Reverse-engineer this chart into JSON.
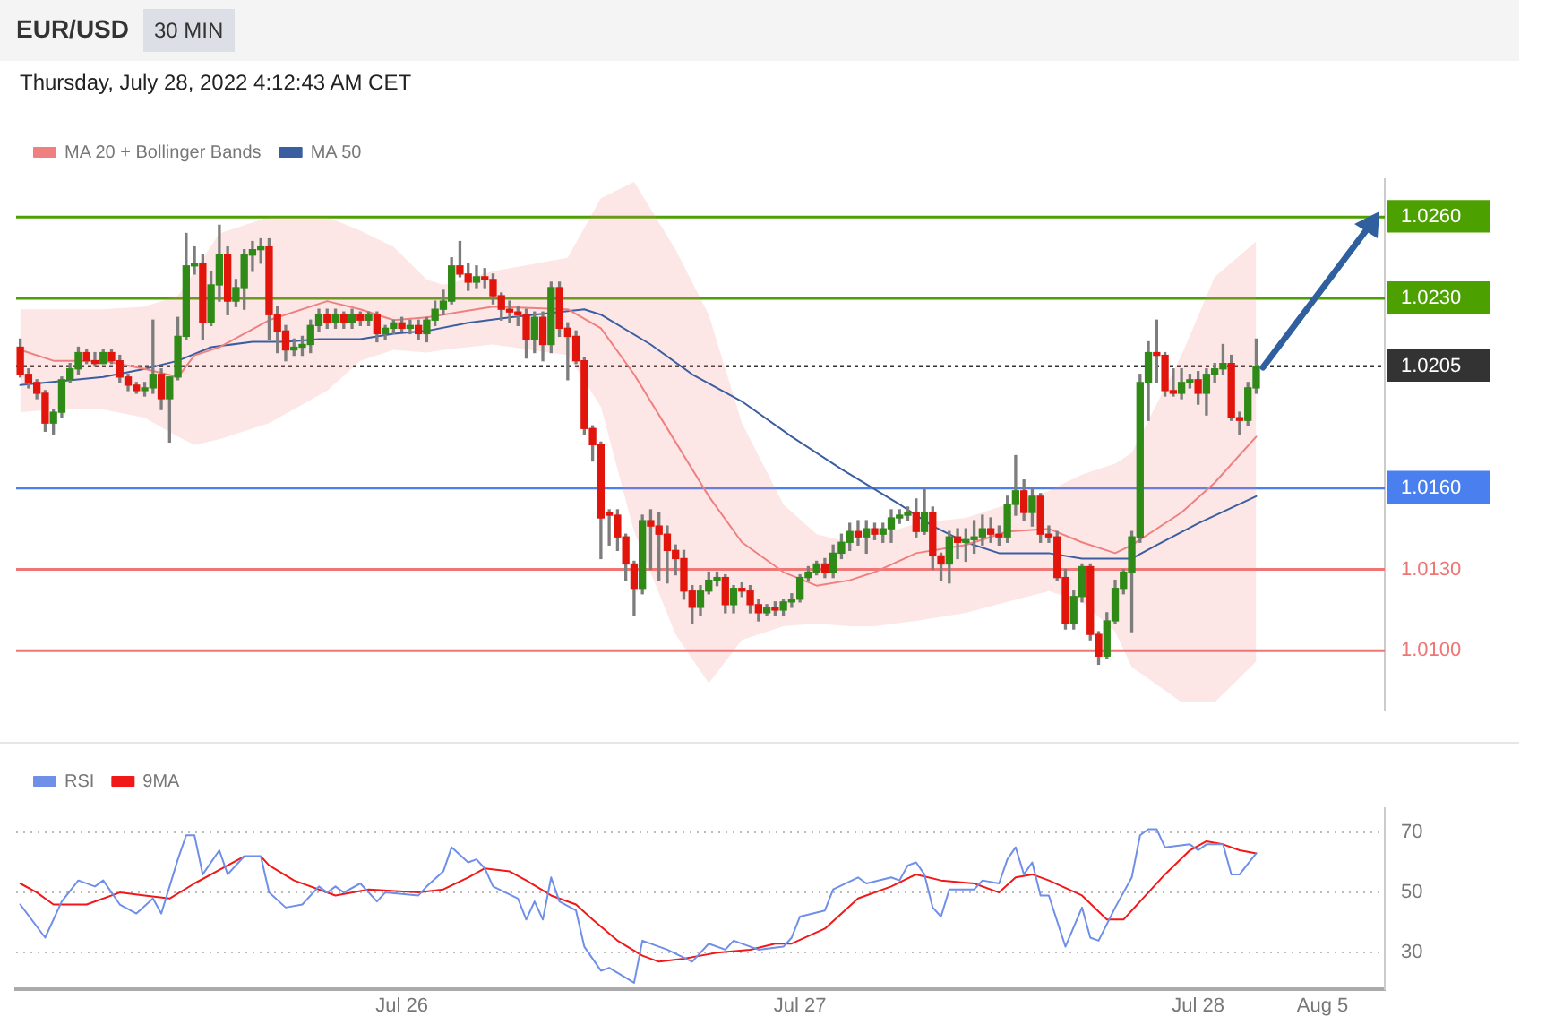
{
  "chart_data": [
    {
      "type": "candlestick",
      "title": "EUR/USD",
      "subtitle": "30 MIN",
      "annotations": [
        "Thursday, July 28, 2022 4:12:43 AM CET"
      ],
      "categories": [
        null,
        null,
        null,
        null,
        null,
        null,
        null,
        null,
        null,
        null,
        null,
        null,
        null,
        null,
        null,
        null,
        null,
        null,
        null,
        null,
        null,
        null,
        null,
        null,
        null,
        null,
        null,
        null,
        null,
        null,
        null,
        null,
        null,
        null,
        null,
        null,
        null,
        null,
        null,
        null,
        null,
        null,
        null,
        null,
        null,
        null,
        null,
        null,
        null,
        null,
        null,
        null,
        null,
        null,
        null,
        null,
        null,
        null,
        null,
        null,
        null,
        null,
        null,
        null,
        null,
        null,
        null,
        null,
        null,
        null,
        null,
        null,
        null,
        null,
        null,
        null,
        null,
        null,
        null,
        null,
        null,
        null,
        null,
        null,
        null,
        null,
        null,
        null,
        null,
        null,
        null,
        null,
        null,
        null,
        null,
        null,
        null,
        null,
        null,
        null,
        null,
        null,
        null,
        null,
        null,
        null,
        null,
        null,
        null,
        null,
        null,
        null,
        null,
        null,
        null,
        null,
        null,
        null,
        null,
        null,
        null,
        null,
        null,
        null,
        null,
        null,
        null,
        null,
        null,
        null,
        null,
        null,
        null,
        null,
        null,
        null,
        null,
        null,
        null,
        null,
        null,
        null,
        null,
        null,
        null,
        null,
        null,
        null,
        null,
        null,
        null,
        null,
        null,
        null,
        null,
        null,
        null,
        null,
        null,
        null,
        null,
        null,
        null,
        null,
        null
      ],
      "ohlc": [
        [
          1.0212,
          1.0215,
          1.0201,
          1.0202
        ],
        [
          1.0202,
          1.0204,
          1.0197,
          1.0199
        ],
        [
          1.0199,
          1.02,
          1.0193,
          1.0195
        ],
        [
          1.0195,
          1.0196,
          1.0181,
          1.0184
        ],
        [
          1.0184,
          1.0189,
          1.018,
          1.0188
        ],
        [
          1.0188,
          1.0201,
          1.0186,
          1.02
        ],
        [
          1.02,
          1.0206,
          1.0199,
          1.0204
        ],
        [
          1.0204,
          1.0212,
          1.0202,
          1.021
        ],
        [
          1.021,
          1.0211,
          1.0206,
          1.0207
        ],
        [
          1.0207,
          1.021,
          1.0205,
          1.0206
        ],
        [
          1.0206,
          1.0211,
          1.0206,
          1.021
        ],
        [
          1.021,
          1.0211,
          1.0206,
          1.0207
        ],
        [
          1.0207,
          1.0209,
          1.0199,
          1.0201
        ],
        [
          1.0201,
          1.0202,
          1.0196,
          1.0198
        ],
        [
          1.0198,
          1.0199,
          1.0195,
          1.0196
        ],
        [
          1.0196,
          1.0199,
          1.0194,
          1.0197
        ],
        [
          1.0197,
          1.0222,
          1.0195,
          1.0202
        ],
        [
          1.0202,
          1.0204,
          1.0189,
          1.0193
        ],
        [
          1.0193,
          1.0201,
          1.0177,
          1.0201
        ],
        [
          1.0201,
          1.0223,
          1.02,
          1.0216
        ],
        [
          1.0216,
          1.0254,
          1.0215,
          1.0242
        ],
        [
          1.0242,
          1.0249,
          1.0239,
          1.0243
        ],
        [
          1.0243,
          1.0246,
          1.0215,
          1.0221
        ],
        [
          1.0221,
          1.024,
          1.022,
          1.0235
        ],
        [
          1.0235,
          1.0257,
          1.0229,
          1.0246
        ],
        [
          1.0246,
          1.0249,
          1.0224,
          1.0229
        ],
        [
          1.0229,
          1.0237,
          1.0227,
          1.0234
        ],
        [
          1.0234,
          1.0248,
          1.0226,
          1.0246
        ],
        [
          1.0246,
          1.0251,
          1.024,
          1.0248
        ],
        [
          1.0248,
          1.0252,
          1.0243,
          1.0249
        ],
        [
          1.0249,
          1.0252,
          1.0215,
          1.0224
        ],
        [
          1.0224,
          1.0227,
          1.021,
          1.0218
        ],
        [
          1.0218,
          1.022,
          1.0207,
          1.0211
        ],
        [
          1.0211,
          1.0215,
          1.0209,
          1.0212
        ],
        [
          1.0212,
          1.0216,
          1.0209,
          1.0213
        ],
        [
          1.0213,
          1.0222,
          1.021,
          1.022
        ],
        [
          1.022,
          1.0226,
          1.0218,
          1.0224
        ],
        [
          1.0224,
          1.0226,
          1.0219,
          1.0221
        ],
        [
          1.0221,
          1.0226,
          1.0219,
          1.0224
        ],
        [
          1.0224,
          1.0225,
          1.0219,
          1.0221
        ],
        [
          1.0221,
          1.0226,
          1.0219,
          1.0224
        ],
        [
          1.0224,
          1.0225,
          1.022,
          1.0222
        ],
        [
          1.0222,
          1.0225,
          1.022,
          1.0224
        ],
        [
          1.0224,
          1.0225,
          1.0214,
          1.0217
        ],
        [
          1.0217,
          1.022,
          1.0215,
          1.0219
        ],
        [
          1.0219,
          1.0222,
          1.0217,
          1.0221
        ],
        [
          1.0221,
          1.0223,
          1.0218,
          1.0219
        ],
        [
          1.0219,
          1.0222,
          1.0217,
          1.022
        ],
        [
          1.022,
          1.0222,
          1.0215,
          1.0217
        ],
        [
          1.0217,
          1.0223,
          1.0214,
          1.0222
        ],
        [
          1.0222,
          1.0229,
          1.022,
          1.0226
        ],
        [
          1.0226,
          1.0233,
          1.0224,
          1.0229
        ],
        [
          1.0229,
          1.0245,
          1.0228,
          1.0242
        ],
        [
          1.0242,
          1.0251,
          1.0238,
          1.0239
        ],
        [
          1.0239,
          1.0243,
          1.0233,
          1.0236
        ],
        [
          1.0236,
          1.0242,
          1.0234,
          1.0238
        ],
        [
          1.0238,
          1.0241,
          1.0234,
          1.0237
        ],
        [
          1.0237,
          1.0239,
          1.0228,
          1.0231
        ],
        [
          1.0231,
          1.0232,
          1.0222,
          1.0226
        ],
        [
          1.0226,
          1.0229,
          1.0221,
          1.0225
        ],
        [
          1.0225,
          1.0227,
          1.022,
          1.0224
        ],
        [
          1.0224,
          1.0226,
          1.0208,
          1.0215
        ],
        [
          1.0215,
          1.0225,
          1.021,
          1.0223
        ],
        [
          1.0223,
          1.0225,
          1.0207,
          1.0213
        ],
        [
          1.0213,
          1.0236,
          1.021,
          1.0234
        ],
        [
          1.0234,
          1.0236,
          1.0216,
          1.0219
        ],
        [
          1.0219,
          1.0221,
          1.02,
          1.0216
        ],
        [
          1.0216,
          1.0218,
          1.0206,
          1.0207
        ],
        [
          1.0207,
          1.0208,
          1.018,
          1.0182
        ],
        [
          1.0182,
          1.0183,
          1.017,
          1.0176
        ],
        [
          1.0176,
          1.0177,
          1.0134,
          1.0149
        ],
        [
          1.0151,
          1.0152,
          1.0139,
          1.015
        ],
        [
          1.015,
          1.0152,
          1.0137,
          1.0142
        ],
        [
          1.0142,
          1.0143,
          1.0126,
          1.0132
        ],
        [
          1.0132,
          1.0133,
          1.0113,
          1.0123
        ],
        [
          1.0123,
          1.015,
          1.0121,
          1.0148
        ],
        [
          1.0148,
          1.0152,
          1.013,
          1.0146
        ],
        [
          1.0146,
          1.0151,
          1.0126,
          1.0143
        ],
        [
          1.0143,
          1.0146,
          1.0125,
          1.0137
        ],
        [
          1.0137,
          1.0139,
          1.0128,
          1.0134
        ],
        [
          1.0134,
          1.0137,
          1.0119,
          1.0122
        ],
        [
          1.0122,
          1.0124,
          1.011,
          1.0116
        ],
        [
          1.0116,
          1.0124,
          1.0113,
          1.0122
        ],
        [
          1.0122,
          1.0129,
          1.0121,
          1.0126
        ],
        [
          1.0126,
          1.0129,
          1.0124,
          1.0127
        ],
        [
          1.0127,
          1.0128,
          1.0114,
          1.0117
        ],
        [
          1.0117,
          1.0124,
          1.0114,
          1.0123
        ],
        [
          1.0123,
          1.0125,
          1.012,
          1.0122
        ],
        [
          1.0122,
          1.0124,
          1.0114,
          1.0117
        ],
        [
          1.0117,
          1.0119,
          1.0111,
          1.0114
        ],
        [
          1.0114,
          1.0117,
          1.0113,
          1.0116
        ],
        [
          1.0116,
          1.0118,
          1.0113,
          1.0115
        ],
        [
          1.0115,
          1.0119,
          1.0113,
          1.0118
        ],
        [
          1.0118,
          1.0121,
          1.0116,
          1.0119
        ],
        [
          1.0119,
          1.0128,
          1.0118,
          1.0127
        ],
        [
          1.0127,
          1.0131,
          1.0126,
          1.0129
        ],
        [
          1.0129,
          1.0133,
          1.0128,
          1.0132
        ],
        [
          1.0132,
          1.0134,
          1.0127,
          1.0129
        ],
        [
          1.0129,
          1.0139,
          1.0127,
          1.0136
        ],
        [
          1.0136,
          1.0143,
          1.0134,
          1.014
        ],
        [
          1.014,
          1.0147,
          1.0137,
          1.0144
        ],
        [
          1.0144,
          1.0148,
          1.0139,
          1.0142
        ],
        [
          1.0142,
          1.0148,
          1.0136,
          1.0145
        ],
        [
          1.0145,
          1.0147,
          1.0141,
          1.0143
        ],
        [
          1.0143,
          1.0147,
          1.014,
          1.0145
        ],
        [
          1.0145,
          1.0152,
          1.014,
          1.0149
        ],
        [
          1.0149,
          1.0152,
          1.0147,
          1.015
        ],
        [
          1.015,
          1.0153,
          1.0148,
          1.0151
        ],
        [
          1.0151,
          1.0156,
          1.0142,
          1.0144
        ],
        [
          1.0144,
          1.016,
          1.0143,
          1.0151
        ],
        [
          1.0151,
          1.0153,
          1.013,
          1.0135
        ],
        [
          1.0135,
          1.0136,
          1.0126,
          1.0132
        ],
        [
          1.0132,
          1.0144,
          1.0125,
          1.0142
        ],
        [
          1.0142,
          1.0145,
          1.0134,
          1.014
        ],
        [
          1.014,
          1.0145,
          1.0133,
          1.0141
        ],
        [
          1.0141,
          1.0148,
          1.0136,
          1.0142
        ],
        [
          1.0142,
          1.015,
          1.0139,
          1.0145
        ],
        [
          1.0145,
          1.0149,
          1.014,
          1.0143
        ],
        [
          1.0143,
          1.0146,
          1.0139,
          1.0142
        ],
        [
          1.0142,
          1.0157,
          1.014,
          1.0154
        ],
        [
          1.0154,
          1.0172,
          1.015,
          1.0159
        ],
        [
          1.0159,
          1.0163,
          1.0148,
          1.0151
        ],
        [
          1.0151,
          1.016,
          1.0146,
          1.0157
        ],
        [
          1.0157,
          1.0158,
          1.014,
          1.0143
        ],
        [
          1.0143,
          1.0146,
          1.014,
          1.0142
        ],
        [
          1.0142,
          1.0144,
          1.0126,
          1.0127
        ],
        [
          1.0127,
          1.013,
          1.0108,
          1.011
        ],
        [
          1.011,
          1.0122,
          1.0108,
          1.012
        ],
        [
          1.012,
          1.0132,
          1.0118,
          1.0131
        ],
        [
          1.0131,
          1.0132,
          1.0104,
          1.0106
        ],
        [
          1.0106,
          1.0107,
          1.0095,
          1.0098
        ],
        [
          1.0098,
          1.0114,
          1.0097,
          1.0111
        ],
        [
          1.0111,
          1.0126,
          1.011,
          1.0123
        ],
        [
          1.0123,
          1.013,
          1.0121,
          1.0129
        ],
        [
          1.0129,
          1.0144,
          1.0107,
          1.0142
        ],
        [
          1.0142,
          1.0202,
          1.014,
          1.0199
        ],
        [
          1.0199,
          1.0214,
          1.0185,
          1.021
        ],
        [
          1.021,
          1.0222,
          1.0199,
          1.0209
        ],
        [
          1.0209,
          1.021,
          1.0194,
          1.0196
        ],
        [
          1.0196,
          1.0204,
          1.0194,
          1.0195
        ],
        [
          1.0195,
          1.0204,
          1.0193,
          1.0199
        ],
        [
          1.0199,
          1.0202,
          1.0197,
          1.02
        ],
        [
          1.02,
          1.0203,
          1.0191,
          1.0195
        ],
        [
          1.0195,
          1.0204,
          1.0187,
          1.0202
        ],
        [
          1.0202,
          1.0206,
          1.0199,
          1.0204
        ],
        [
          1.0204,
          1.0213,
          1.0202,
          1.0206
        ],
        [
          1.0206,
          1.0209,
          1.0185,
          1.0186
        ],
        [
          1.0186,
          1.0188,
          1.018,
          1.0185
        ],
        [
          1.0185,
          1.0199,
          1.0183,
          1.0197
        ],
        [
          1.0197,
          1.0215,
          1.0195,
          1.0205
        ],
        null,
        null,
        null,
        null,
        null,
        null,
        null,
        null,
        null,
        null,
        null,
        null,
        null,
        null,
        null
      ],
      "series": [
        {
          "name": "MA 20 + Bollinger Bands",
          "type": "line",
          "color": "#f08080",
          "values": [
            1.0211,
            null,
            null,
            null,
            1.0207,
            null,
            null,
            null,
            null,
            null,
            1.0207,
            null,
            null,
            null,
            null,
            1.0204,
            null,
            null,
            null,
            1.0201,
            null,
            1.0209,
            null,
            null,
            1.0212,
            null,
            null,
            null,
            null,
            null,
            1.0222,
            null,
            null,
            null,
            null,
            null,
            null,
            1.0229,
            null,
            null,
            null,
            1.0226,
            null,
            null,
            null,
            1.0222,
            null,
            null,
            null,
            1.0223,
            null,
            1.0224,
            null,
            null,
            null,
            null,
            null,
            1.0227,
            null,
            null,
            null,
            null,
            null,
            null,
            null,
            null,
            1.0226,
            null,
            null,
            null,
            1.0219,
            null,
            null,
            null,
            1.0202,
            null,
            null,
            null,
            null,
            1.0177,
            null,
            null,
            null,
            1.0157,
            null,
            null,
            null,
            1.014,
            null,
            null,
            null,
            null,
            1.0129,
            null,
            null,
            null,
            1.0124,
            null,
            null,
            null,
            1.0126,
            null,
            null,
            1.0129,
            null,
            null,
            null,
            null,
            1.0136,
            null,
            null,
            null,
            null,
            null,
            1.0139,
            null,
            null,
            null,
            null,
            1.0144,
            null,
            null,
            null,
            null,
            1.0145,
            null,
            null,
            null,
            1.014,
            null,
            null,
            null,
            1.0136,
            null,
            1.0139,
            null,
            null,
            null,
            null,
            null,
            1.0151,
            null,
            null,
            null,
            1.0162,
            null,
            null,
            null,
            null,
            1.0179,
            null,
            null,
            null,
            null,
            null,
            null,
            null,
            null,
            null,
            null,
            null,
            null,
            null,
            null,
            null
          ],
          "upper": [
            1.0226,
            null,
            null,
            null,
            1.0226,
            null,
            null,
            null,
            null,
            null,
            1.0226,
            null,
            null,
            null,
            null,
            1.0227,
            null,
            null,
            null,
            1.0231,
            null,
            1.024,
            null,
            null,
            1.0254,
            null,
            null,
            null,
            null,
            null,
            1.026,
            null,
            null,
            null,
            null,
            null,
            null,
            1.026,
            null,
            null,
            null,
            1.0255,
            null,
            null,
            null,
            1.0249,
            null,
            null,
            null,
            1.0237,
            null,
            1.0235,
            null,
            null,
            null,
            null,
            null,
            1.024,
            null,
            null,
            null,
            null,
            null,
            null,
            null,
            null,
            1.0245,
            null,
            null,
            null,
            1.0267,
            null,
            null,
            null,
            1.0273,
            null,
            null,
            null,
            null,
            1.0248,
            null,
            null,
            null,
            1.0224,
            null,
            null,
            null,
            1.0184,
            null,
            null,
            null,
            null,
            1.0154,
            null,
            null,
            null,
            1.0143,
            null,
            null,
            null,
            1.014,
            null,
            null,
            1.0142,
            null,
            null,
            null,
            null,
            1.0147,
            null,
            null,
            null,
            null,
            null,
            1.0149,
            null,
            null,
            null,
            null,
            1.0154,
            null,
            null,
            null,
            null,
            1.0159,
            null,
            null,
            null,
            1.0165,
            null,
            null,
            null,
            1.0169,
            null,
            1.0173,
            null,
            null,
            null,
            null,
            null,
            1.0209,
            null,
            null,
            null,
            1.0238,
            null,
            null,
            null,
            null,
            1.0251,
            null,
            null,
            null,
            null,
            null,
            null,
            null,
            null,
            null,
            null,
            null,
            null,
            null,
            null,
            null
          ],
          "lower": [
            1.0188,
            null,
            null,
            null,
            1.0189,
            null,
            null,
            null,
            null,
            null,
            1.0189,
            null,
            null,
            null,
            null,
            1.0186,
            null,
            null,
            null,
            1.0179,
            null,
            1.0176,
            null,
            null,
            1.0178,
            null,
            null,
            null,
            null,
            null,
            1.0184,
            null,
            null,
            null,
            null,
            null,
            null,
            1.0196,
            null,
            null,
            null,
            1.0207,
            null,
            null,
            null,
            1.0211,
            null,
            null,
            null,
            1.021,
            null,
            1.0211,
            null,
            null,
            null,
            null,
            null,
            1.0213,
            null,
            null,
            null,
            null,
            null,
            null,
            null,
            null,
            1.0209,
            null,
            null,
            null,
            1.019,
            null,
            null,
            null,
            1.0144,
            null,
            null,
            null,
            null,
            1.0106,
            null,
            null,
            null,
            1.0088,
            null,
            null,
            null,
            1.0104,
            null,
            null,
            null,
            null,
            1.0109,
            null,
            null,
            null,
            1.011,
            null,
            null,
            null,
            1.0109,
            null,
            null,
            1.0109,
            null,
            null,
            null,
            null,
            1.0111,
            null,
            null,
            null,
            null,
            null,
            1.0114,
            null,
            null,
            null,
            null,
            1.0118,
            null,
            null,
            null,
            null,
            1.0122,
            null,
            null,
            null,
            1.0118,
            null,
            null,
            null,
            1.0107,
            null,
            1.0094,
            null,
            null,
            null,
            null,
            null,
            1.0081,
            null,
            null,
            null,
            1.0081,
            null,
            null,
            null,
            null,
            1.0096,
            null,
            null,
            null,
            null,
            null,
            null,
            null,
            null,
            null,
            null,
            null,
            null,
            null,
            null,
            null
          ]
        },
        {
          "name": "MA 50",
          "type": "line",
          "color": "#3a5ea0",
          "values": [
            1.0198,
            null,
            null,
            null,
            null,
            null,
            null,
            null,
            null,
            null,
            1.0201,
            null,
            null,
            null,
            null,
            1.0204,
            null,
            null,
            null,
            1.0207,
            null,
            null,
            null,
            1.0212,
            null,
            null,
            null,
            null,
            1.0214,
            null,
            null,
            null,
            1.0214,
            null,
            null,
            null,
            1.0215,
            null,
            null,
            null,
            null,
            1.0215,
            null,
            null,
            null,
            1.0217,
            null,
            null,
            null,
            1.0218,
            null,
            null,
            null,
            null,
            1.0221,
            null,
            null,
            null,
            null,
            1.0223,
            null,
            null,
            null,
            null,
            null,
            null,
            null,
            null,
            1.0226,
            null,
            1.0224,
            null,
            null,
            null,
            null,
            null,
            1.0213,
            null,
            null,
            null,
            null,
            1.0202,
            null,
            null,
            null,
            null,
            null,
            1.0192,
            null,
            null,
            null,
            null,
            null,
            1.0179,
            null,
            null,
            null,
            null,
            null,
            1.0167,
            null,
            null,
            null,
            null,
            null,
            null,
            1.0154,
            null,
            null,
            null,
            1.0146,
            null,
            null,
            null,
            1.014,
            null,
            null,
            null,
            1.0136,
            null,
            null,
            null,
            null,
            null,
            1.0136,
            null,
            null,
            null,
            1.0134,
            null,
            null,
            null,
            null,
            null,
            1.0134,
            null,
            null,
            1.0139,
            null,
            null,
            null,
            null,
            1.0147,
            null,
            null,
            null,
            null,
            null,
            null,
            1.0157,
            null,
            null,
            null,
            null,
            null,
            null,
            null,
            null,
            null,
            null,
            null,
            null,
            null,
            null,
            null
          ]
        }
      ],
      "ref_lines": [
        {
          "axis": "y",
          "value": 1.026,
          "color": "#4ca000"
        },
        {
          "axis": "y",
          "value": 1.023,
          "color": "#4ca000"
        },
        {
          "axis": "y",
          "value": 1.0205,
          "color": "#333333",
          "line_style": "dotted"
        },
        {
          "axis": "y",
          "value": 1.016,
          "color": "#4a7ff0"
        },
        {
          "axis": "y",
          "value": 1.013,
          "color": "#f07575"
        },
        {
          "axis": "y",
          "value": 1.01,
          "color": "#f07575"
        }
      ],
      "ylim": [
        1.0078,
        1.0274
      ],
      "yticks": [
        {
          "value": 1.026,
          "label": "1.0260"
        },
        {
          "value": 1.023,
          "label": "1.0230"
        },
        {
          "value": 1.0205,
          "label": "1.0205"
        },
        {
          "value": 1.016,
          "label": "1.0160"
        },
        {
          "value": 1.013,
          "label": "1.0130"
        },
        {
          "value": 1.01,
          "label": "1.0100"
        }
      ],
      "tick_labels": "y",
      "legend": "top left"
    },
    {
      "type": "line",
      "categories": [
        null,
        null,
        null,
        null,
        null,
        null,
        null,
        null,
        null,
        null,
        null,
        null,
        null,
        null,
        null,
        null,
        null,
        null,
        null,
        null,
        null,
        null,
        null,
        null,
        null,
        null,
        null,
        null,
        null,
        null,
        null,
        null,
        null,
        null,
        null,
        null,
        null,
        null,
        null,
        null,
        null,
        null,
        null,
        null,
        null,
        null,
        "Jul 26",
        null,
        null,
        null,
        null,
        null,
        null,
        null,
        null,
        null,
        null,
        null,
        null,
        null,
        null,
        null,
        null,
        null,
        null,
        null,
        null,
        null,
        null,
        null,
        null,
        null,
        null,
        null,
        null,
        null,
        null,
        null,
        null,
        null,
        null,
        null,
        null,
        null,
        null,
        null,
        null,
        null,
        null,
        null,
        null,
        null,
        null,
        null,
        "Jul 27",
        null,
        null,
        null,
        null,
        null,
        null,
        null,
        null,
        null,
        null,
        null,
        null,
        null,
        null,
        null,
        null,
        null,
        null,
        null,
        null,
        null,
        null,
        null,
        null,
        null,
        null,
        null,
        null,
        null,
        null,
        null,
        null,
        null,
        null,
        null,
        null,
        null,
        null,
        null,
        null,
        null,
        null,
        null,
        null,
        null,
        null,
        null,
        "Jul 28",
        null,
        null,
        null,
        null,
        null,
        null,
        null,
        null,
        null,
        null,
        null,
        null,
        null,
        null,
        "Aug 5",
        null,
        null,
        null,
        null,
        null,
        null,
        null
      ],
      "series": [
        {
          "name": "RSI",
          "color": "#6f8fe8",
          "values": [
            46,
            null,
            null,
            35,
            null,
            47,
            null,
            54,
            null,
            52,
            54,
            null,
            46,
            null,
            43,
            null,
            48,
            43,
            null,
            61,
            69,
            69,
            56,
            null,
            64,
            56,
            null,
            62,
            null,
            62,
            50,
            null,
            45,
            null,
            46,
            null,
            52,
            50,
            52,
            50,
            null,
            53,
            null,
            47,
            50,
            null,
            null,
            null,
            49,
            52,
            null,
            57,
            65,
            null,
            60,
            61,
            58,
            52,
            null,
            null,
            48,
            41,
            47,
            41,
            55,
            47,
            null,
            44,
            32,
            null,
            24,
            25,
            null,
            null,
            20,
            34,
            null,
            null,
            31,
            null,
            null,
            27,
            null,
            33,
            null,
            31,
            34,
            null,
            null,
            31,
            null,
            null,
            32,
            35,
            42,
            null,
            null,
            44,
            51,
            null,
            null,
            55,
            53,
            null,
            null,
            55,
            54,
            59,
            60,
            56,
            45,
            42,
            51,
            null,
            null,
            51,
            54,
            null,
            53,
            61,
            65,
            56,
            60,
            49,
            49,
            null,
            32,
            null,
            45,
            35,
            34,
            null,
            45,
            null,
            55,
            69,
            71,
            71,
            65,
            null,
            null,
            66,
            64,
            66,
            null,
            66,
            56,
            56,
            null,
            63,
            null,
            null,
            null,
            null,
            null,
            null,
            null,
            null,
            null,
            null,
            null,
            null,
            null,
            null,
            null
          ]
        },
        {
          "name": "9MA",
          "color": "#f01818",
          "values": [
            53,
            null,
            50,
            null,
            46,
            null,
            null,
            null,
            46,
            null,
            null,
            null,
            50,
            null,
            null,
            49,
            null,
            null,
            48,
            null,
            null,
            53,
            null,
            null,
            null,
            59,
            null,
            62,
            null,
            62,
            59,
            null,
            null,
            54,
            null,
            null,
            null,
            null,
            49,
            null,
            null,
            null,
            51,
            null,
            null,
            null,
            null,
            null,
            50,
            null,
            null,
            51,
            null,
            null,
            55,
            null,
            58,
            null,
            null,
            57,
            null,
            54,
            null,
            null,
            49,
            null,
            null,
            46,
            null,
            41,
            null,
            null,
            34,
            null,
            null,
            29,
            null,
            27,
            null,
            null,
            28,
            null,
            29,
            null,
            30,
            null,
            null,
            null,
            31,
            null,
            null,
            33,
            null,
            33,
            null,
            null,
            null,
            38,
            null,
            null,
            null,
            48,
            null,
            null,
            null,
            52,
            null,
            null,
            56,
            null,
            null,
            54,
            null,
            null,
            null,
            53,
            null,
            null,
            50,
            null,
            55,
            null,
            56,
            null,
            54,
            null,
            null,
            null,
            49,
            null,
            null,
            41,
            null,
            41,
            null,
            47,
            null,
            null,
            56,
            null,
            null,
            64,
            null,
            67,
            null,
            66,
            null,
            64,
            null,
            63,
            null,
            null,
            null,
            null,
            null,
            null,
            null,
            null,
            null,
            null,
            null,
            null,
            null,
            null,
            null
          ]
        }
      ],
      "ylim": [
        18,
        78
      ],
      "yticks": [
        30,
        50,
        70
      ],
      "grid": "y",
      "legend": "top left"
    }
  ]
}
